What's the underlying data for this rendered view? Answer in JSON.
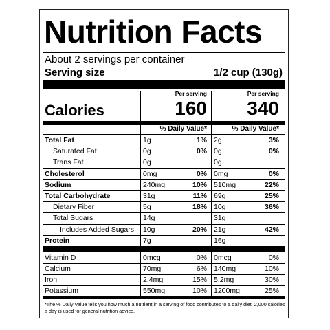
{
  "header": {
    "title": "Nutrition Facts",
    "servings": "About 2 servings per container",
    "serving_size_label": "Serving size",
    "serving_size_value": "1/2 cup (130g)"
  },
  "calories_label": "Calories",
  "columns": [
    {
      "per_serving": "Per serving",
      "calories": "160",
      "dv_header": "% Daily Value*"
    },
    {
      "per_serving": "Per serving",
      "calories": "340",
      "dv_header": "% Daily Value*"
    }
  ],
  "nutrients": [
    {
      "name": "Total Fat",
      "bold": true,
      "indent": 0,
      "cells": [
        [
          "1g",
          "1%"
        ],
        [
          "2g",
          "3%"
        ]
      ]
    },
    {
      "name": "Saturated Fat",
      "bold": false,
      "indent": 1,
      "cells": [
        [
          "0g",
          "0%"
        ],
        [
          "0g",
          "0%"
        ]
      ]
    },
    {
      "name": "Trans Fat",
      "bold": false,
      "indent": 1,
      "cells": [
        [
          "0g"
        ],
        [
          "0g"
        ]
      ]
    },
    {
      "name": "Cholesterol",
      "bold": true,
      "indent": 0,
      "cells": [
        [
          "0mg",
          "0%"
        ],
        [
          "0mg",
          "0%"
        ]
      ]
    },
    {
      "name": "Sodium",
      "bold": true,
      "indent": 0,
      "cells": [
        [
          "240mg",
          "10%"
        ],
        [
          "510mg",
          "22%"
        ]
      ]
    },
    {
      "name": "Total Carbohydrate",
      "bold": true,
      "indent": 0,
      "cells": [
        [
          "31g",
          "11%"
        ],
        [
          "69g",
          "25%"
        ]
      ]
    },
    {
      "name": "Dietary Fiber",
      "bold": false,
      "indent": 1,
      "cells": [
        [
          "5g",
          "18%"
        ],
        [
          "10g",
          "36%"
        ]
      ]
    },
    {
      "name": "Total Sugars",
      "bold": false,
      "indent": 1,
      "cells": [
        [
          "14g"
        ],
        [
          "31g"
        ]
      ]
    },
    {
      "name": "Includes Added Sugars",
      "bold": false,
      "indent": 2,
      "cells": [
        [
          "10g",
          "20%"
        ],
        [
          "21g",
          "42%"
        ]
      ]
    },
    {
      "name": "Protein",
      "bold": true,
      "indent": 0,
      "cells": [
        [
          "7g"
        ],
        [
          "16g"
        ]
      ]
    }
  ],
  "vitamins": [
    {
      "name": "Vitamin D",
      "cells": [
        [
          "0mcg",
          "0%"
        ],
        [
          "0mcg",
          "0%"
        ]
      ]
    },
    {
      "name": "Calcium",
      "cells": [
        [
          "70mg",
          "6%"
        ],
        [
          "140mg",
          "10%"
        ]
      ]
    },
    {
      "name": "Iron",
      "cells": [
        [
          "2.4mg",
          "15%"
        ],
        [
          "5.2mg",
          "30%"
        ]
      ]
    },
    {
      "name": "Potassium",
      "cells": [
        [
          "550mg",
          "10%"
        ],
        [
          "1200mg",
          "25%"
        ]
      ]
    }
  ],
  "footnote": "*The % Daily Value tells you how much a nutrient in a serving of food contributes to a daily diet. 2,000 calories a day is used for general nutrition advice."
}
